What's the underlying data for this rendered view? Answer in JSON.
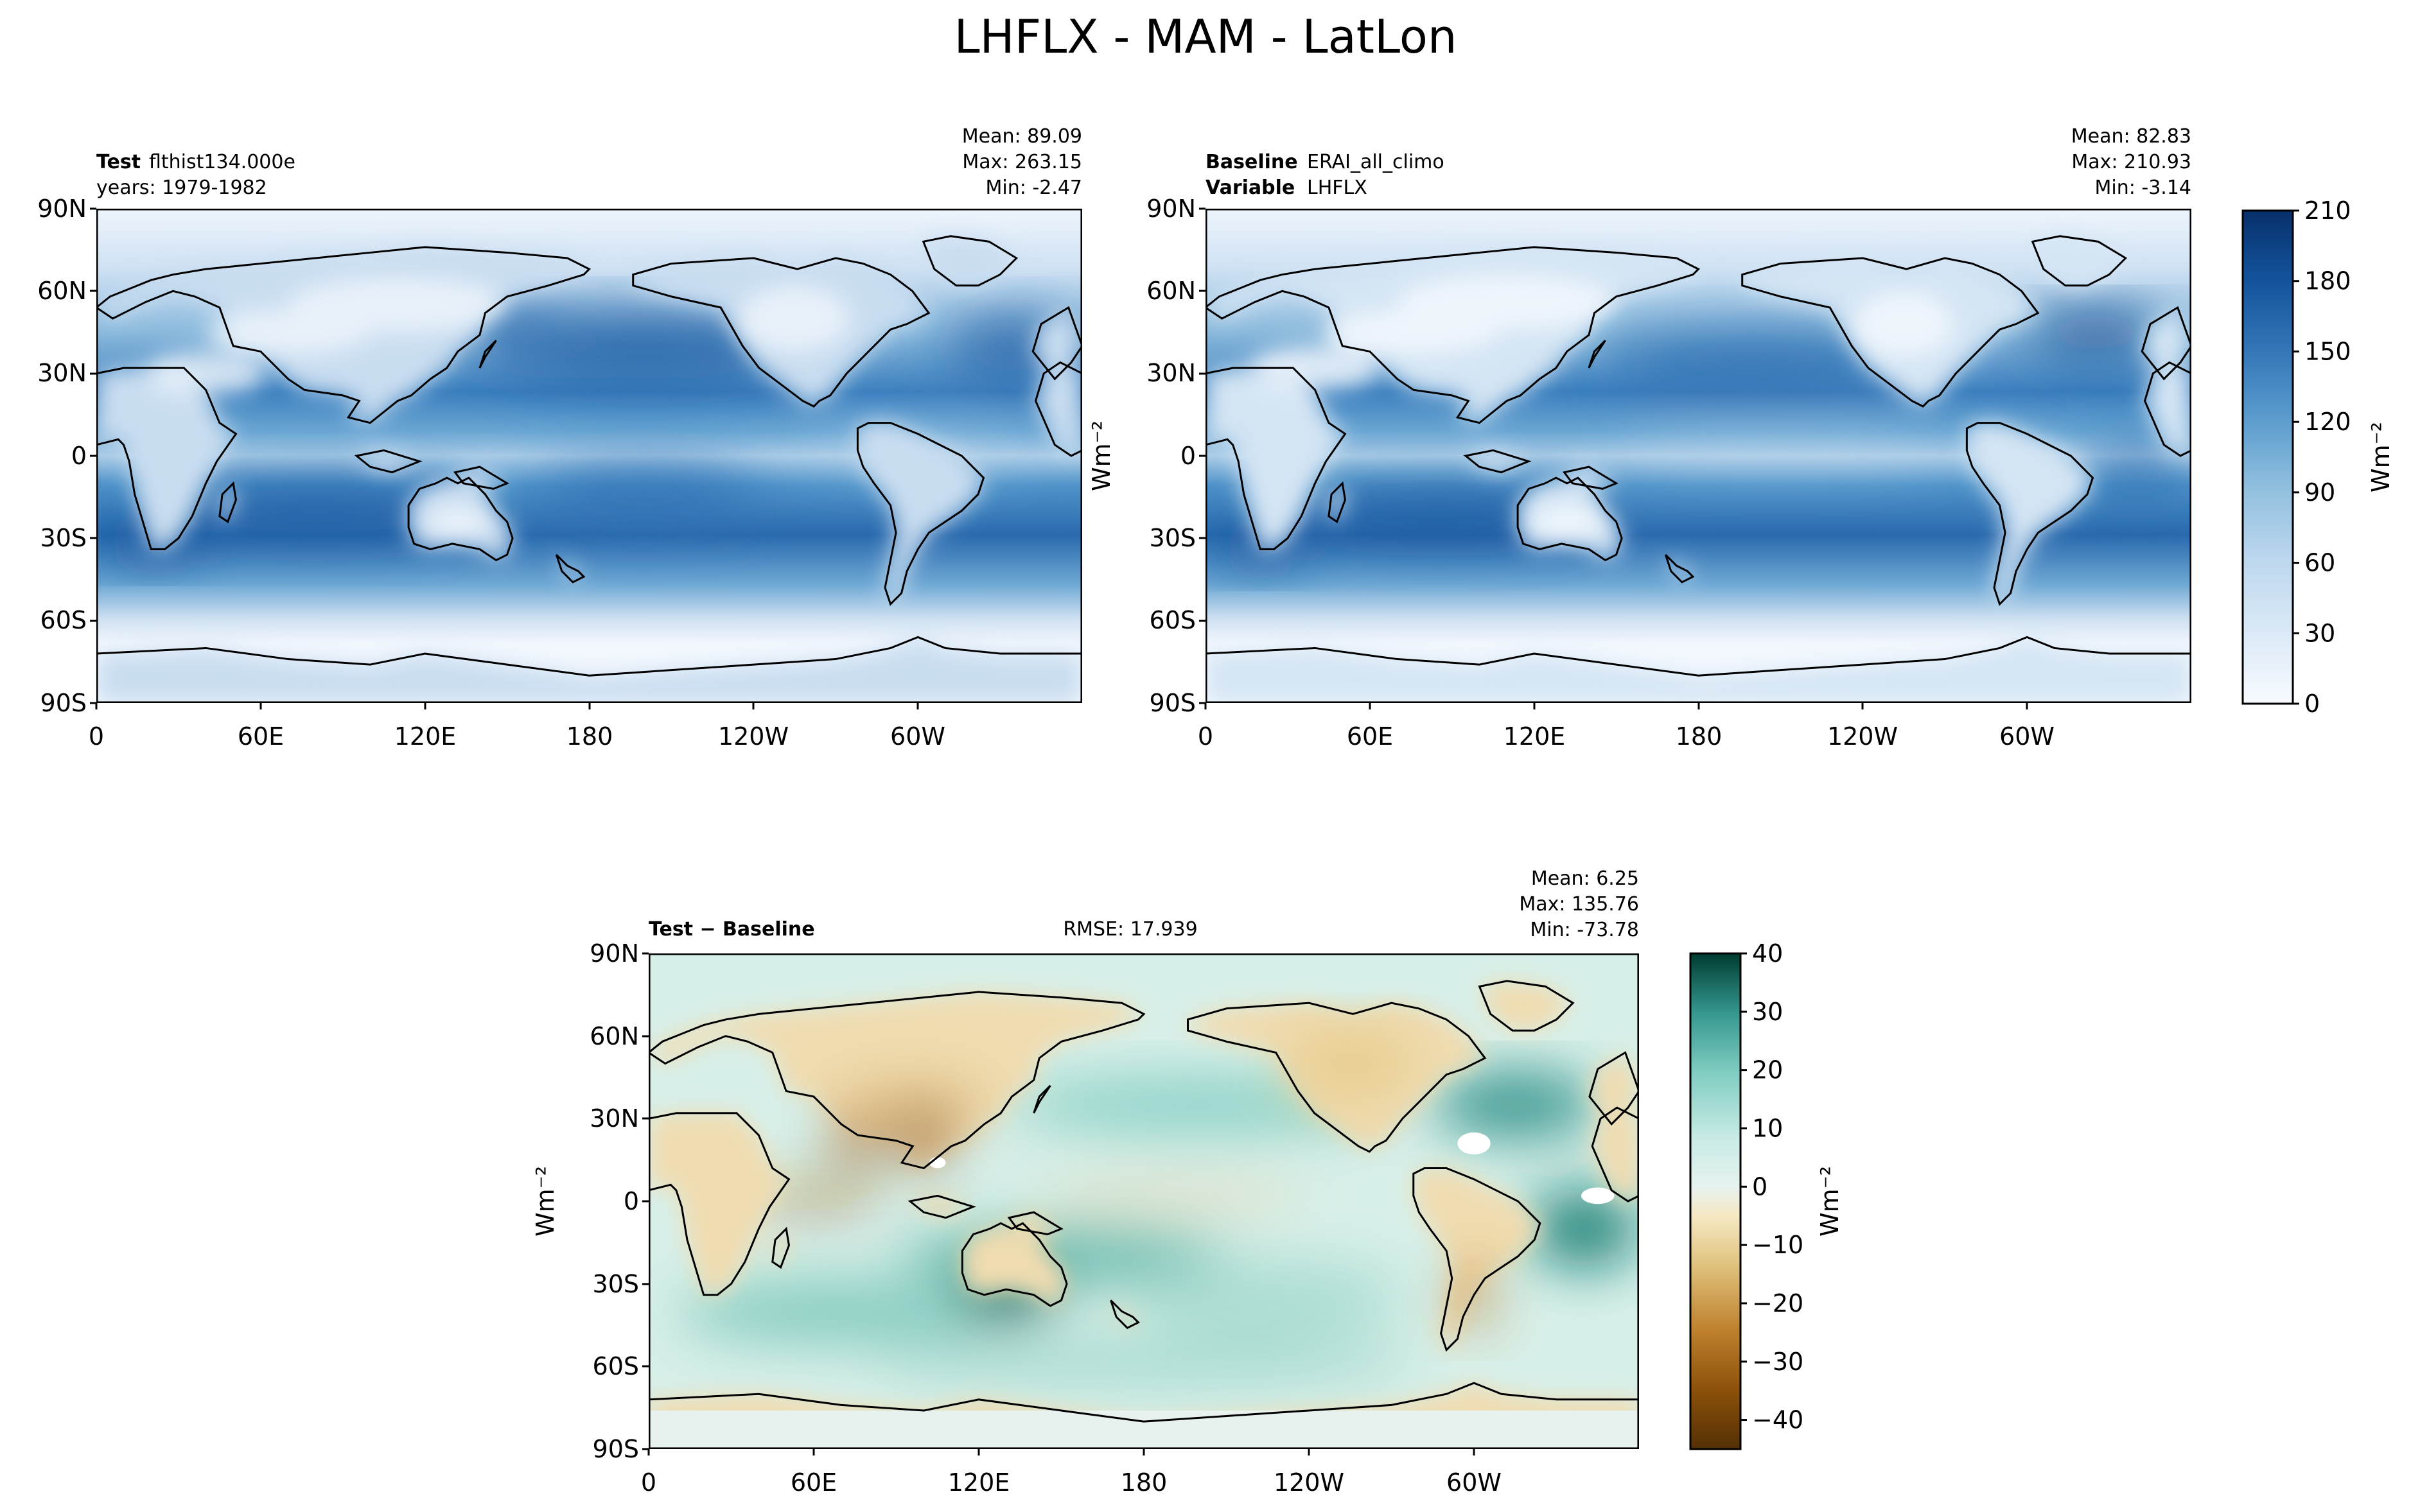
{
  "figure": {
    "title": "LHFLX - MAM - LatLon"
  },
  "panels": {
    "test": {
      "left_label": "Test",
      "left_value": "flthist134.000e",
      "left_line2": "years: 1979-1982",
      "stat_mean": "Mean: 89.09",
      "stat_max": "Max: 263.15",
      "stat_min": "Min: -2.47"
    },
    "baseline": {
      "left_label": "Baseline",
      "left_value": "ERAI_all_climo",
      "left_label2": "Variable",
      "left_value2": "LHFLX",
      "stat_mean": "Mean: 82.83",
      "stat_max": "Max: 210.93",
      "stat_min": "Min: -3.14"
    },
    "diff": {
      "left_label": "Test − Baseline",
      "center": "RMSE: 17.939",
      "stat_mean": "Mean:  6.25",
      "stat_max": "Max: 135.76",
      "stat_min": "Min: -73.78"
    }
  },
  "axes": {
    "lat_ticks": [
      "90N",
      "60N",
      "30N",
      "0",
      "30S",
      "60S",
      "90S"
    ],
    "lon_ticks": [
      "0",
      "60E",
      "120E",
      "180",
      "120W",
      "60W"
    ],
    "unit": "Wm⁻²"
  },
  "colors": {
    "blues": [
      "#f7fbff",
      "#e9f2fb",
      "#dceaf7",
      "#cde0f2",
      "#bdd7ee",
      "#a8cde4",
      "#93c1df",
      "#79b0d7",
      "#5e9ecf",
      "#4a8cc4",
      "#3478b8",
      "#2366ac",
      "#13539c",
      "#08438a",
      "#08306b"
    ],
    "diverging": [
      "#543005",
      "#8c510a",
      "#a76219",
      "#c2832f",
      "#d8b06a",
      "#e6cb8c",
      "#f0ddb1",
      "#f5efde",
      "#e7f3f1",
      "#c7eae5",
      "#9fd8cb",
      "#6bbfb0",
      "#35978f",
      "#1a7b72",
      "#01665e",
      "#003c30"
    ]
  },
  "chart_data": [
    {
      "type": "heatmap",
      "panel": "test",
      "projection": "lat-lon",
      "xlim": [
        0,
        360
      ],
      "ylim": [
        -90,
        90
      ],
      "colorbar_shared_with": "baseline"
    },
    {
      "type": "heatmap",
      "panel": "baseline",
      "projection": "lat-lon",
      "xlim": [
        0,
        360
      ],
      "ylim": [
        -90,
        90
      ],
      "colorbar": {
        "levels": [
          0,
          15,
          30,
          45,
          60,
          75,
          90,
          105,
          120,
          135,
          150,
          165,
          180,
          195,
          210
        ],
        "tick_labels": [
          "210",
          "180",
          "150",
          "120",
          "90",
          "60",
          "30",
          "0"
        ],
        "label": "Wm⁻²"
      }
    },
    {
      "type": "heatmap",
      "panel": "diff",
      "projection": "lat-lon",
      "xlim": [
        0,
        360
      ],
      "ylim": [
        -90,
        90
      ],
      "colorbar": {
        "levels": [
          -45,
          -40,
          -35,
          -30,
          -25,
          -20,
          -15,
          -10,
          -5,
          0,
          5,
          10,
          15,
          20,
          25,
          30,
          35,
          40
        ],
        "tick_labels": [
          "40",
          "30",
          "20",
          "10",
          "0",
          "−10",
          "−20",
          "−30",
          "−40"
        ],
        "label": "Wm⁻²"
      }
    }
  ]
}
